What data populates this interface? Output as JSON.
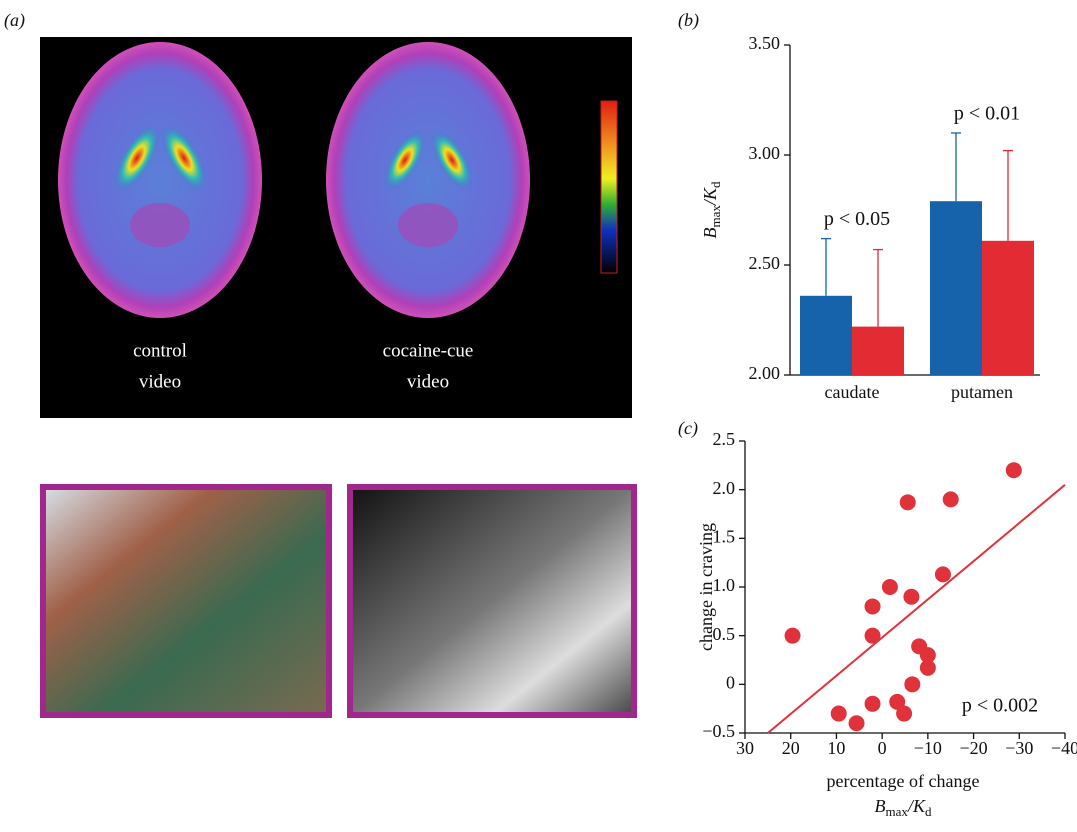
{
  "panel_a": {
    "label": "(a)",
    "captions": [
      [
        "control",
        "video"
      ],
      [
        "cocaine-cue",
        "video"
      ]
    ]
  },
  "chart_data": [
    {
      "type": "bar",
      "panel_label": "(b)",
      "ylabel_parts": [
        "B",
        "max",
        "/K",
        "d"
      ],
      "categories": [
        "caudate",
        "putamen"
      ],
      "series": [
        {
          "color": "#1662ab",
          "values": [
            2.36,
            2.79
          ],
          "errors": [
            0.26,
            0.31
          ]
        },
        {
          "color": "#e22b33",
          "values": [
            2.22,
            2.61
          ],
          "errors": [
            0.35,
            0.41
          ]
        }
      ],
      "annotations": [
        "p < 0.05",
        "p < 0.01"
      ],
      "ylim": [
        2.0,
        3.5
      ],
      "yticks": [
        {
          "value": 2.0,
          "label": "2.00"
        },
        {
          "value": 2.5,
          "label": "2.50"
        },
        {
          "value": 3.0,
          "label": "3.00"
        },
        {
          "value": 3.5,
          "label": "3.50"
        }
      ]
    },
    {
      "type": "scatter",
      "panel_label": "(c)",
      "ylabel": "change in craving",
      "xlabel": "percentage of change",
      "xlabel_parts": [
        "B",
        "max",
        "/K",
        "d"
      ],
      "color": "#e0323a",
      "x": [
        19.6,
        9.5,
        5.6,
        2.1,
        2.1,
        2.1,
        -1.7,
        -5.6,
        -6.4,
        -3.3,
        -4.8,
        -6.6,
        -8.1,
        -10,
        -10,
        -13.3,
        -15,
        -28.8
      ],
      "y": [
        0.5,
        -0.3,
        -0.4,
        0.8,
        0.5,
        -0.2,
        1.0,
        1.87,
        0.9,
        -0.18,
        -0.3,
        0.0,
        0.39,
        0.3,
        0.17,
        1.13,
        1.9,
        2.2
      ],
      "trend_line": {
        "x": [
          25,
          -40
        ],
        "y": [
          -0.5,
          2.05
        ]
      },
      "annotation": "p < 0.002",
      "xlim": [
        30,
        -40
      ],
      "xticks": [
        30,
        20,
        10,
        0,
        {
          "value": -10,
          "label": "−10"
        },
        {
          "value": -20,
          "label": "−20"
        },
        {
          "value": -30,
          "label": "−30"
        },
        {
          "value": -40,
          "label": "−40"
        }
      ],
      "ylim": [
        -0.5,
        2.5
      ],
      "yticks": [
        {
          "value": -0.5,
          "label": "−0.5"
        },
        0,
        0.5,
        {
          "value": 1.0,
          "label": "1.0"
        },
        1.5,
        {
          "value": 2.0,
          "label": "2.0"
        },
        2.5
      ]
    }
  ]
}
